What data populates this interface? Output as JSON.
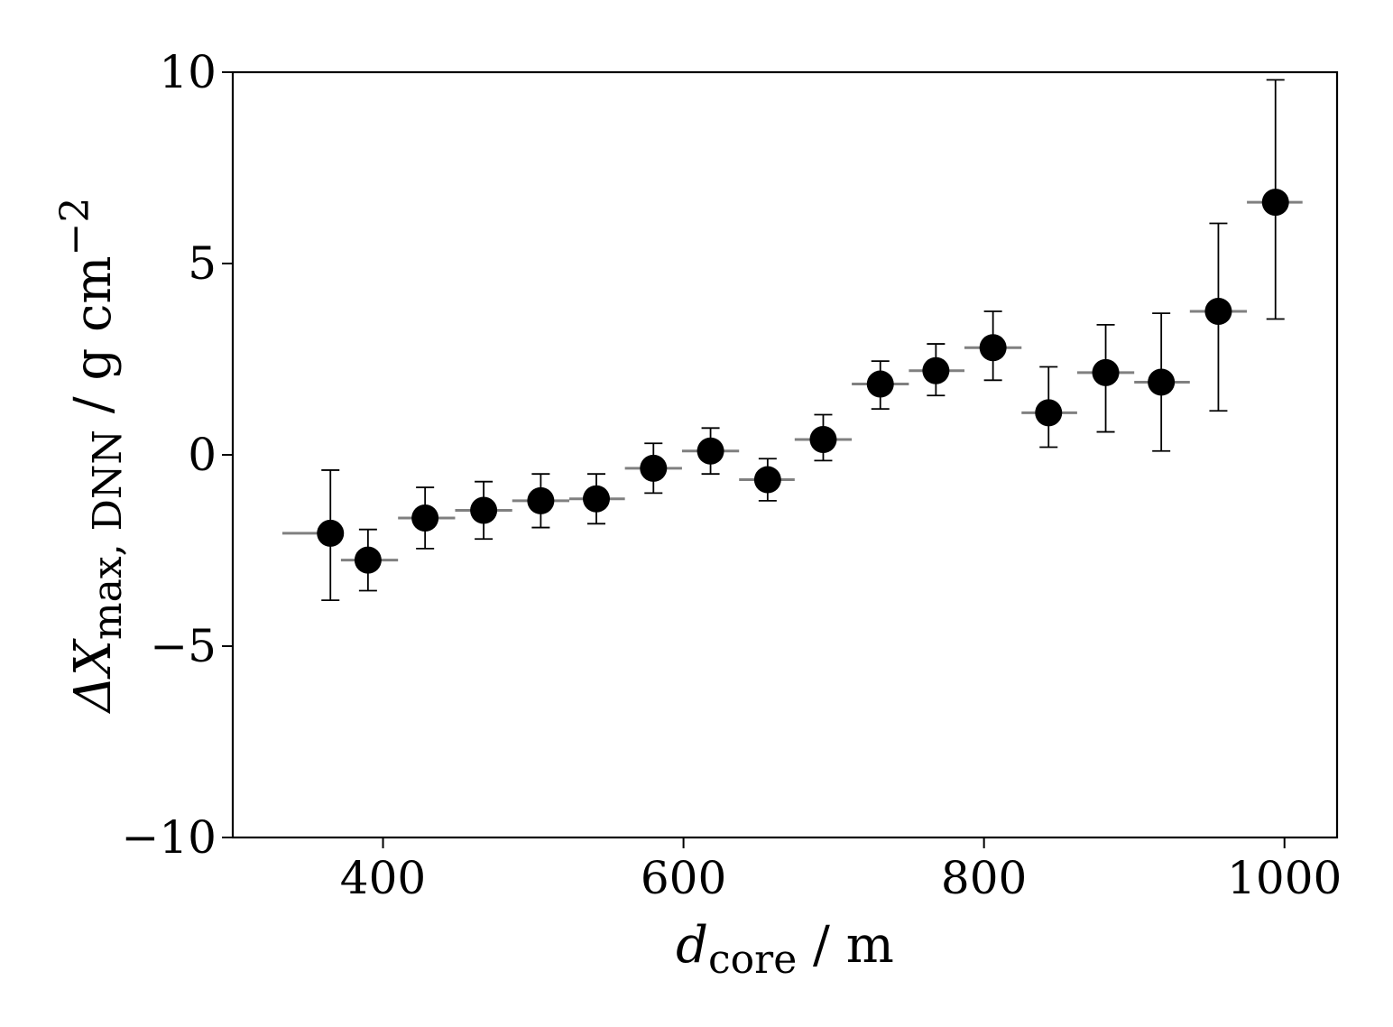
{
  "chart_data": {
    "type": "scatter",
    "title": "",
    "xlabel": {
      "main": "d",
      "sub": "core",
      "unit": " / m"
    },
    "ylabel": {
      "prefix": "ΔX",
      "sub": "max, DNN",
      "unit": " / g cm",
      "sup": "−2"
    },
    "xlim": [
      300,
      1035
    ],
    "ylim": [
      -10,
      10
    ],
    "xticks": [
      400,
      600,
      800,
      1000
    ],
    "xtick_labels": [
      "400",
      "600",
      "800",
      "1000"
    ],
    "yticks": [
      -10,
      -5,
      0,
      5,
      10
    ],
    "ytick_labels": [
      "−10",
      "−5",
      "0",
      "5",
      "10"
    ],
    "grid": false,
    "colors": {
      "marker": "#000000",
      "errorbar": "#000000",
      "bin_bar": "#808080"
    },
    "points": [
      {
        "x": 365,
        "y": -2.05,
        "yerr_low": 1.75,
        "yerr_high": 1.65,
        "x_low": 333,
        "x_high": 365
      },
      {
        "x": 390,
        "y": -2.75,
        "yerr_low": 0.8,
        "yerr_high": 0.8,
        "x_low": 372,
        "x_high": 410
      },
      {
        "x": 428,
        "y": -1.65,
        "yerr_low": 0.8,
        "yerr_high": 0.8,
        "x_low": 410,
        "x_high": 448
      },
      {
        "x": 467,
        "y": -1.45,
        "yerr_low": 0.75,
        "yerr_high": 0.75,
        "x_low": 448,
        "x_high": 486
      },
      {
        "x": 505,
        "y": -1.2,
        "yerr_low": 0.7,
        "yerr_high": 0.7,
        "x_low": 486,
        "x_high": 524
      },
      {
        "x": 542,
        "y": -1.15,
        "yerr_low": 0.65,
        "yerr_high": 0.65,
        "x_low": 524,
        "x_high": 561
      },
      {
        "x": 580,
        "y": -0.35,
        "yerr_low": 0.65,
        "yerr_high": 0.65,
        "x_low": 561,
        "x_high": 599
      },
      {
        "x": 618,
        "y": 0.1,
        "yerr_low": 0.6,
        "yerr_high": 0.6,
        "x_low": 599,
        "x_high": 637
      },
      {
        "x": 656,
        "y": -0.65,
        "yerr_low": 0.55,
        "yerr_high": 0.55,
        "x_low": 637,
        "x_high": 674
      },
      {
        "x": 693,
        "y": 0.4,
        "yerr_low": 0.55,
        "yerr_high": 0.65,
        "x_low": 674,
        "x_high": 712
      },
      {
        "x": 731,
        "y": 1.85,
        "yerr_low": 0.65,
        "yerr_high": 0.6,
        "x_low": 712,
        "x_high": 750
      },
      {
        "x": 768,
        "y": 2.2,
        "yerr_low": 0.65,
        "yerr_high": 0.7,
        "x_low": 750,
        "x_high": 787
      },
      {
        "x": 806,
        "y": 2.8,
        "yerr_low": 0.85,
        "yerr_high": 0.95,
        "x_low": 787,
        "x_high": 825
      },
      {
        "x": 843,
        "y": 1.1,
        "yerr_low": 0.9,
        "yerr_high": 1.2,
        "x_low": 825,
        "x_high": 862
      },
      {
        "x": 881,
        "y": 2.15,
        "yerr_low": 1.55,
        "yerr_high": 1.25,
        "x_low": 862,
        "x_high": 900
      },
      {
        "x": 918,
        "y": 1.9,
        "yerr_low": 1.8,
        "yerr_high": 1.8,
        "x_low": 900,
        "x_high": 937
      },
      {
        "x": 956,
        "y": 3.75,
        "yerr_low": 2.6,
        "yerr_high": 2.3,
        "x_low": 937,
        "x_high": 975
      },
      {
        "x": 994,
        "y": 6.6,
        "yerr_low": 3.05,
        "yerr_high": 3.2,
        "x_low": 975,
        "x_high": 1012
      }
    ]
  }
}
